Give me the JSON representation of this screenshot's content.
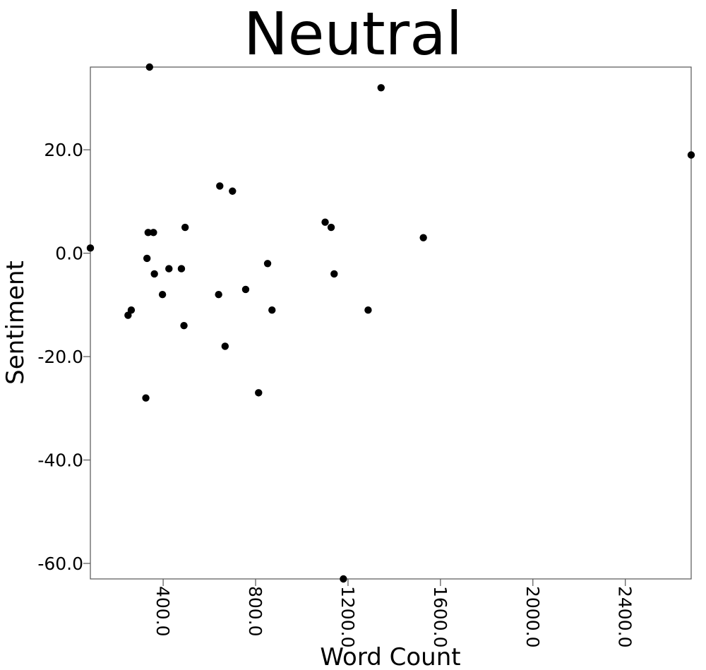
{
  "chart_data": {
    "type": "scatter",
    "title": "Neutral",
    "xlabel": "Word Count",
    "ylabel": "Sentiment",
    "xlim": [
      85,
      2685
    ],
    "ylim": [
      -63,
      36
    ],
    "x_ticks": [
      400,
      800,
      1200,
      1600,
      2000,
      2400
    ],
    "x_tick_labels": [
      "400.0",
      "800.0",
      "1200.0",
      "1600.0",
      "2000.0",
      "2400.0"
    ],
    "y_ticks": [
      20,
      0,
      -20,
      -40,
      -60
    ],
    "y_tick_labels": [
      "20.0",
      "0.0",
      "-20.0",
      "-40.0",
      "-60.0"
    ],
    "grid": false,
    "legend": "none",
    "marker_color": "#000000",
    "points": [
      {
        "x": 85,
        "y": 1
      },
      {
        "x": 248,
        "y": -12
      },
      {
        "x": 262,
        "y": -11
      },
      {
        "x": 325,
        "y": -28
      },
      {
        "x": 330,
        "y": -1
      },
      {
        "x": 335,
        "y": 4
      },
      {
        "x": 341,
        "y": 36
      },
      {
        "x": 358,
        "y": 4
      },
      {
        "x": 362,
        "y": -4
      },
      {
        "x": 397,
        "y": -8
      },
      {
        "x": 425,
        "y": -3
      },
      {
        "x": 479,
        "y": -3
      },
      {
        "x": 490,
        "y": -14
      },
      {
        "x": 495,
        "y": 5
      },
      {
        "x": 640,
        "y": -8
      },
      {
        "x": 645,
        "y": 13
      },
      {
        "x": 668,
        "y": -18
      },
      {
        "x": 700,
        "y": 12
      },
      {
        "x": 757,
        "y": -7
      },
      {
        "x": 813,
        "y": -27
      },
      {
        "x": 852,
        "y": -2
      },
      {
        "x": 871,
        "y": -11
      },
      {
        "x": 1101,
        "y": 6
      },
      {
        "x": 1127,
        "y": 5
      },
      {
        "x": 1140,
        "y": -4
      },
      {
        "x": 1180,
        "y": -63
      },
      {
        "x": 1287,
        "y": -11
      },
      {
        "x": 1343,
        "y": 32
      },
      {
        "x": 1526,
        "y": 3
      },
      {
        "x": 2685,
        "y": 19
      }
    ]
  }
}
